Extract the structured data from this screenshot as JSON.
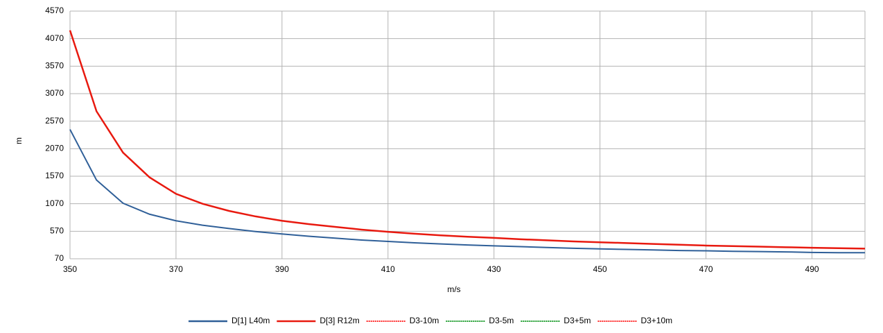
{
  "chart_data": {
    "type": "line",
    "x_label": "m/s",
    "y_label": "m",
    "x": [
      350,
      355,
      360,
      365,
      370,
      375,
      380,
      385,
      390,
      395,
      400,
      405,
      410,
      415,
      420,
      425,
      430,
      435,
      440,
      445,
      450,
      455,
      460,
      465,
      470,
      475,
      480,
      485,
      490,
      495,
      500
    ],
    "series": [
      {
        "name": "D[1] L40m",
        "color": "#2f5f98",
        "style": "solid",
        "values": [
          2420,
          1500,
          1080,
          880,
          760,
          680,
          620,
          565,
          520,
          480,
          445,
          410,
          385,
          360,
          340,
          320,
          305,
          290,
          275,
          260,
          250,
          240,
          230,
          220,
          215,
          205,
          200,
          195,
          185,
          180,
          180
        ]
      },
      {
        "name": "D[3] R12m",
        "color": "#e8190f",
        "style": "solid",
        "values": [
          4220,
          2750,
          2000,
          1550,
          1250,
          1070,
          940,
          840,
          760,
          700,
          650,
          600,
          560,
          525,
          495,
          470,
          450,
          425,
          405,
          385,
          370,
          355,
          340,
          325,
          310,
          300,
          290,
          280,
          270,
          262,
          255
        ]
      },
      {
        "name": "D3-10m",
        "color": "#ff2a2a",
        "style": "dotted",
        "values": [
          null,
          null,
          null,
          null,
          null,
          null,
          null,
          null,
          null,
          null,
          null,
          null,
          null,
          null,
          null,
          null,
          null,
          null,
          null,
          null,
          null,
          null,
          null,
          null,
          null,
          null,
          null,
          null,
          null,
          null,
          null
        ]
      },
      {
        "name": "D3-5m",
        "color": "#1a9b2a",
        "style": "dotted",
        "values": [
          null,
          null,
          null,
          null,
          null,
          null,
          null,
          null,
          null,
          null,
          null,
          null,
          null,
          null,
          null,
          null,
          null,
          null,
          null,
          null,
          null,
          null,
          null,
          null,
          null,
          null,
          null,
          null,
          null,
          null,
          null
        ]
      },
      {
        "name": "D3+5m",
        "color": "#1a9b2a",
        "style": "dotted",
        "values": [
          null,
          null,
          null,
          null,
          null,
          null,
          null,
          null,
          null,
          null,
          null,
          null,
          null,
          null,
          null,
          null,
          null,
          null,
          null,
          null,
          null,
          null,
          null,
          null,
          null,
          null,
          null,
          null,
          null,
          null,
          null
        ]
      },
      {
        "name": "D3+10m",
        "color": "#ff2a2a",
        "style": "dotted",
        "values": [
          null,
          null,
          null,
          null,
          null,
          null,
          null,
          null,
          null,
          null,
          null,
          null,
          null,
          null,
          null,
          null,
          null,
          null,
          null,
          null,
          null,
          null,
          null,
          null,
          null,
          null,
          null,
          null,
          null,
          null,
          null
        ]
      }
    ],
    "xlim": [
      350,
      500
    ],
    "xticks": [
      350,
      370,
      390,
      410,
      430,
      450,
      470,
      490
    ],
    "ylim": [
      70,
      4570
    ],
    "yticks": [
      70,
      570,
      1070,
      1570,
      2070,
      2570,
      3070,
      3570,
      4070,
      4570
    ],
    "grid": true,
    "legend": "bottom"
  }
}
